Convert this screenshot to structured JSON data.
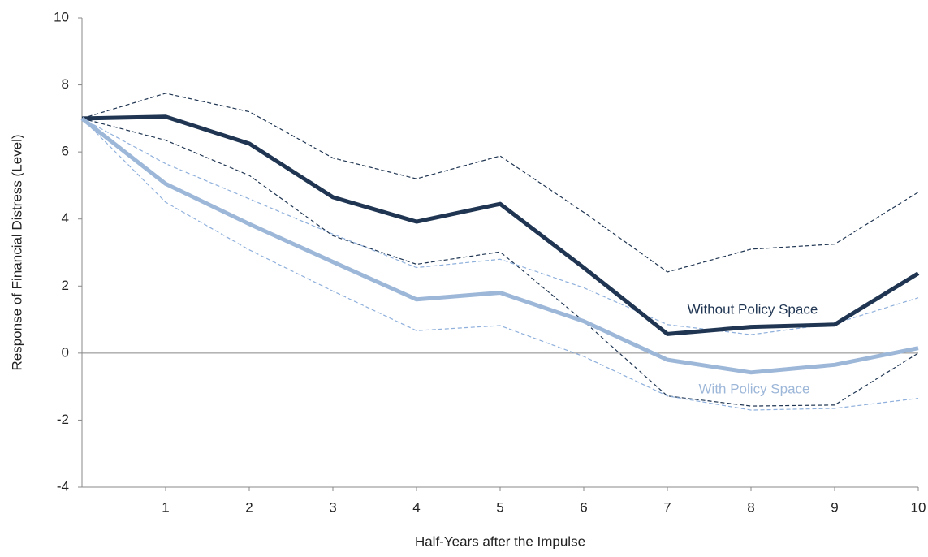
{
  "chart_data": {
    "type": "line",
    "xlabel": "Half-Years after the Impulse",
    "ylabel": "Response of  Financial Distress (Level)",
    "x": [
      0,
      1,
      2,
      3,
      4,
      5,
      6,
      7,
      8,
      9,
      10
    ],
    "xlim": [
      0,
      10
    ],
    "xticks": [
      1,
      2,
      3,
      4,
      5,
      6,
      7,
      8,
      9,
      10
    ],
    "ylim": [
      -4,
      10
    ],
    "yticks": [
      -4,
      -2,
      0,
      2,
      4,
      6,
      8,
      10
    ],
    "series": [
      {
        "color": "#1f3552",
        "style": "dashed",
        "values": [
          7.0,
          7.75,
          7.2,
          5.82,
          5.2,
          5.88,
          4.2,
          2.42,
          3.1,
          3.25,
          4.8
        ]
      },
      {
        "color": "#1f3552",
        "style": "dashed",
        "values": [
          7.0,
          6.35,
          5.3,
          3.5,
          2.65,
          3.02,
          0.95,
          -1.28,
          -1.58,
          -1.55,
          0.0
        ]
      },
      {
        "color": "#8fb0dc",
        "style": "dashed",
        "values": [
          7.0,
          5.65,
          4.6,
          3.55,
          2.55,
          2.8,
          1.95,
          0.85,
          0.55,
          0.88,
          1.65
        ]
      },
      {
        "color": "#8fb0dc",
        "style": "dashed",
        "values": [
          7.0,
          4.5,
          3.08,
          1.85,
          0.67,
          0.82,
          -0.1,
          -1.28,
          -1.7,
          -1.65,
          -1.35
        ]
      },
      {
        "name": "Without Policy Space",
        "color": "#1f3552",
        "style": "solid",
        "values": [
          7.0,
          7.05,
          6.25,
          4.65,
          3.92,
          4.45,
          2.55,
          0.57,
          0.78,
          0.85,
          2.38
        ]
      },
      {
        "name": "With Policy Space",
        "color": "#9db7d9",
        "style": "solid",
        "values": [
          7.0,
          5.05,
          3.85,
          2.72,
          1.6,
          1.8,
          0.95,
          -0.2,
          -0.58,
          -0.35,
          0.15
        ]
      }
    ]
  }
}
